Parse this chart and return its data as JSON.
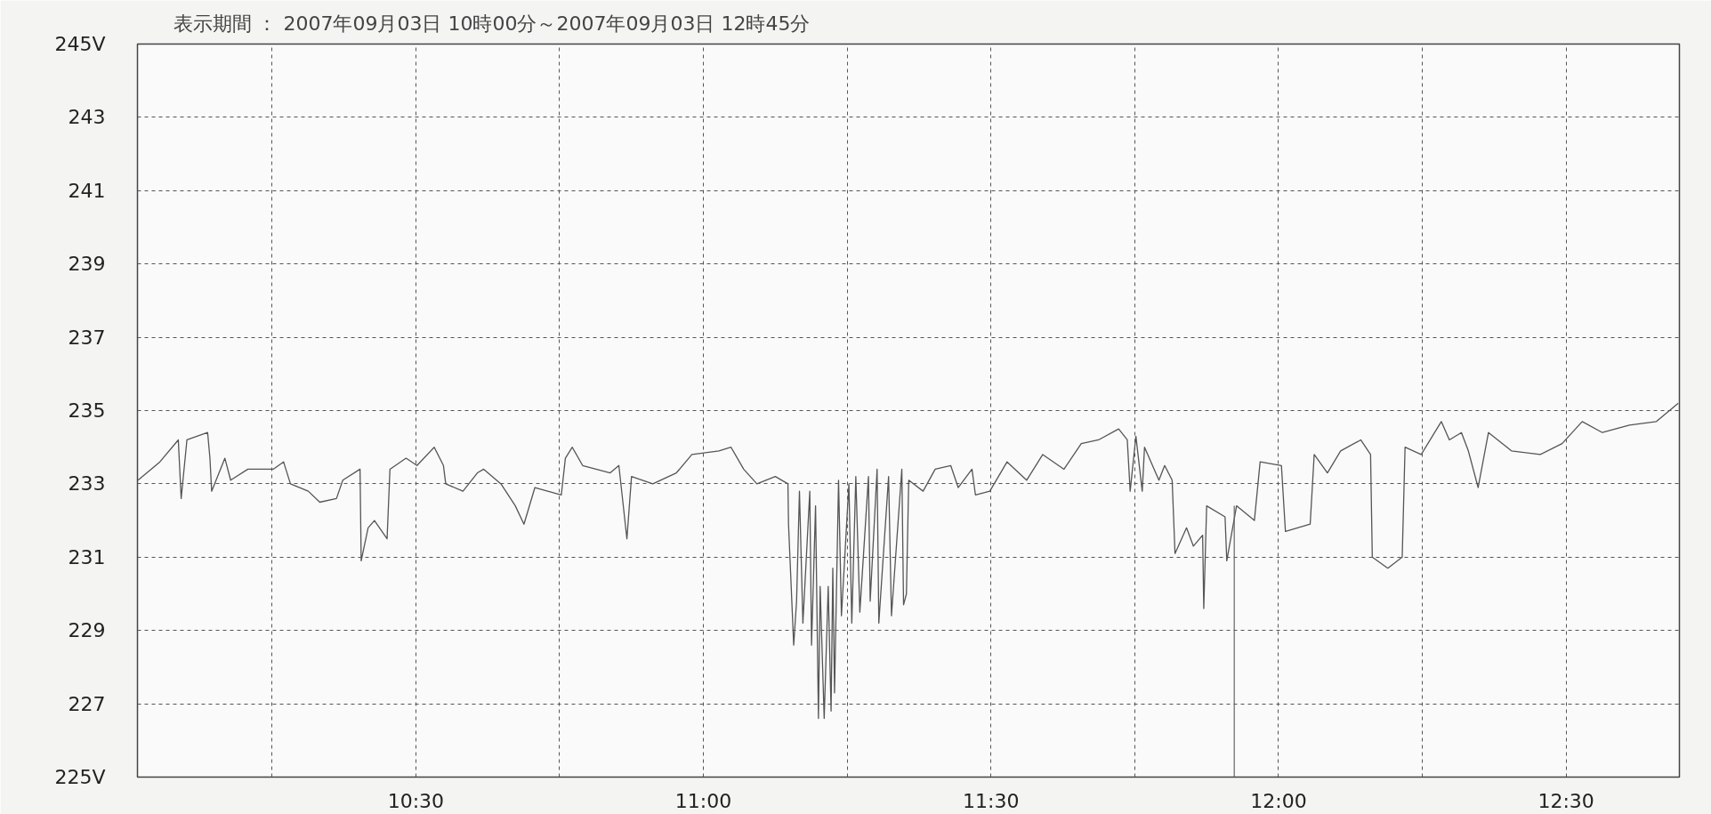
{
  "chart_data": {
    "type": "line",
    "title": "表示期間 ： 2007年09月03日 10時00分～2007年09月03日 12時45分",
    "x": [
      10.017,
      10.055,
      10.087,
      10.092,
      10.102,
      10.138,
      10.142,
      10.145,
      10.168,
      10.178,
      10.208,
      10.252,
      10.27,
      10.282,
      10.313,
      10.333,
      10.362,
      10.373,
      10.403,
      10.405,
      10.417,
      10.428,
      10.45,
      10.455,
      10.483,
      10.502,
      10.532,
      10.548,
      10.552,
      10.582,
      10.607,
      10.618,
      10.648,
      10.673,
      10.688,
      10.707,
      10.753,
      10.76,
      10.772,
      10.79,
      10.838,
      10.853,
      10.867,
      10.875,
      10.912,
      10.953,
      10.98,
      11.027,
      11.048,
      11.07,
      11.093,
      11.125,
      11.147,
      11.148,
      11.157,
      11.162,
      11.167,
      11.173,
      11.185,
      11.188,
      11.195,
      11.2,
      11.203,
      11.21,
      11.217,
      11.222,
      11.225,
      11.228,
      11.235,
      11.24,
      11.253,
      11.258,
      11.265,
      11.272,
      11.287,
      11.29,
      11.302,
      11.305,
      11.322,
      11.327,
      11.345,
      11.348,
      11.353,
      11.357,
      11.382,
      11.403,
      11.43,
      11.443,
      11.467,
      11.473,
      11.498,
      11.528,
      11.562,
      11.59,
      11.627,
      11.657,
      11.687,
      11.722,
      11.737,
      11.742,
      11.752,
      11.763,
      11.767,
      11.792,
      11.802,
      11.815,
      11.82,
      11.84,
      11.852,
      11.868,
      11.87,
      11.875,
      11.907,
      11.91,
      11.927,
      11.958,
      11.968,
      12.005,
      12.012,
      12.055,
      12.062,
      12.085,
      12.108,
      12.143,
      12.16,
      12.163,
      12.19,
      12.215,
      12.22,
      12.248,
      12.283,
      12.297,
      12.318,
      12.33,
      12.347,
      12.365,
      12.405,
      12.455,
      12.493,
      12.528,
      12.563,
      12.61,
      12.657,
      12.695
    ],
    "series": [
      {
        "color": "#555555",
        "values": [
          233.1,
          233.6,
          234.2,
          232.6,
          234.2,
          234.4,
          233.7,
          232.8,
          233.7,
          233.1,
          233.4,
          233.4,
          233.6,
          233.0,
          232.8,
          232.5,
          232.6,
          233.1,
          233.4,
          230.9,
          231.8,
          232.0,
          231.5,
          233.4,
          233.7,
          233.5,
          234.0,
          233.5,
          233.0,
          232.8,
          233.3,
          233.4,
          233.0,
          232.4,
          231.9,
          232.9,
          232.7,
          233.7,
          234.0,
          233.5,
          233.3,
          233.5,
          231.5,
          233.2,
          233.0,
          233.3,
          233.8,
          233.9,
          234.0,
          233.4,
          233.0,
          233.2,
          233.0,
          231.9,
          228.6,
          229.8,
          232.8,
          229.2,
          232.8,
          228.6,
          232.4,
          226.6,
          230.2,
          226.6,
          230.2,
          226.8,
          230.7,
          227.3,
          233.1,
          229.4,
          233.0,
          229.2,
          233.2,
          229.5,
          233.2,
          229.8,
          233.4,
          229.2,
          233.2,
          229.4,
          233.4,
          229.7,
          230.0,
          233.1,
          232.8,
          233.4,
          233.5,
          232.9,
          233.4,
          232.7,
          232.8,
          233.6,
          233.1,
          233.8,
          233.4,
          234.1,
          234.2,
          234.5,
          234.2,
          232.8,
          234.3,
          232.8,
          234.0,
          233.1,
          233.5,
          233.1,
          231.1,
          231.8,
          231.3,
          231.6,
          229.6,
          232.4,
          232.1,
          230.9,
          232.4,
          232.0,
          233.6,
          233.5,
          231.7,
          231.9,
          233.8,
          233.3,
          233.9,
          234.2,
          233.8,
          231.0,
          230.7,
          231.0,
          234.0,
          233.8,
          234.7,
          234.2,
          234.4,
          233.9,
          232.9,
          234.4,
          233.9,
          233.8,
          234.1,
          234.7,
          234.4,
          234.6,
          234.7,
          235.2
        ]
      }
    ],
    "xlim": [
      10.016,
      12.697
    ],
    "xticks": [
      {
        "value": 10.25,
        "label": null
      },
      {
        "value": 10.5,
        "label": "10:30"
      },
      {
        "value": 10.75,
        "label": null
      },
      {
        "value": 11,
        "label": "11:00"
      },
      {
        "value": 11.25,
        "label": null
      },
      {
        "value": 11.5,
        "label": "11:30"
      },
      {
        "value": 11.75,
        "label": null
      },
      {
        "value": 12,
        "label": "12:00"
      },
      {
        "value": 12.25,
        "label": null
      },
      {
        "value": 12.5,
        "label": "12:30"
      }
    ],
    "ylim": [
      225,
      245
    ],
    "yticks": [
      {
        "value": 225,
        "label": "225V"
      },
      227,
      229,
      231,
      233,
      235,
      237,
      239,
      241,
      243,
      {
        "value": 245,
        "label": "245V"
      }
    ],
    "ref_lines": [
      {
        "axis": "x",
        "value": 11.923,
        "color": "#666666"
      }
    ],
    "grid": true
  }
}
